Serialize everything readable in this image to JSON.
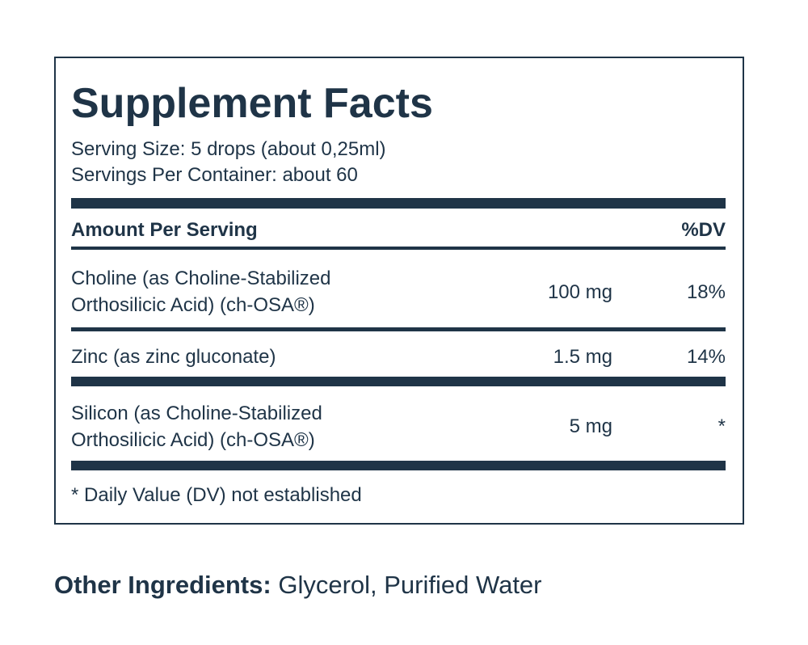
{
  "panel": {
    "title": "Supplement Facts",
    "serving_size": "Serving Size: 5 drops (about 0,25ml)",
    "servings_per_container": "Servings Per Container: about 60",
    "header": {
      "amount": "Amount Per Serving",
      "dv": "%DV"
    },
    "rows": [
      {
        "name": [
          "Choline (as Choline-Stabilized",
          "Orthosilicic Acid) (ch-OSA®)"
        ],
        "amount": "100 mg",
        "dv": "18%"
      },
      {
        "name": [
          "Zinc (as zinc gluconate)"
        ],
        "amount": "1.5 mg",
        "dv": "14%"
      },
      {
        "name": [
          "Silicon (as Choline-Stabilized",
          "Orthosilicic Acid) (ch-OSA®)"
        ],
        "amount": "5 mg",
        "dv": "*"
      }
    ],
    "footnote": "* Daily Value (DV) not established"
  },
  "other_ingredients": {
    "label": "Other Ingredients:",
    "text": "Glycerol, Purified Water"
  }
}
